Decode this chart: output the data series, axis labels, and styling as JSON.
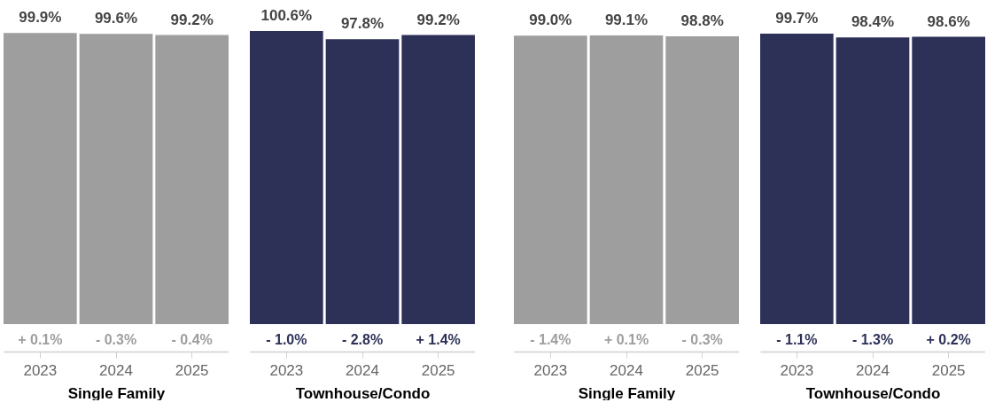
{
  "chart_data": [
    {
      "type": "bar",
      "xlabel": "Single Family",
      "categories": [
        "2023",
        "2024",
        "2025"
      ],
      "values": [
        99.9,
        99.6,
        99.2
      ],
      "value_labels": [
        "99.9%",
        "99.6%",
        "99.2%"
      ],
      "color": "#9e9e9e",
      "annotations": [
        "+ 0.1%",
        "- 0.3%",
        "- 0.4%"
      ]
    },
    {
      "type": "bar",
      "xlabel": "Townhouse/Condo",
      "categories": [
        "2023",
        "2024",
        "2025"
      ],
      "values": [
        100.6,
        97.8,
        99.2
      ],
      "value_labels": [
        "100.6%",
        "97.8%",
        "99.2%"
      ],
      "color": "#2d3157",
      "annotations": [
        "- 1.0%",
        "- 2.8%",
        "+ 1.4%"
      ]
    },
    {
      "type": "bar",
      "xlabel": "Single Family",
      "categories": [
        "2023",
        "2024",
        "2025"
      ],
      "values": [
        99.0,
        99.1,
        98.8
      ],
      "value_labels": [
        "99.0%",
        "99.1%",
        "98.8%"
      ],
      "color": "#9e9e9e",
      "annotations": [
        "- 1.4%",
        "+ 0.1%",
        "- 0.3%"
      ]
    },
    {
      "type": "bar",
      "xlabel": "Townhouse/Condo",
      "categories": [
        "2023",
        "2024",
        "2025"
      ],
      "values": [
        99.7,
        98.4,
        98.6
      ],
      "value_labels": [
        "99.7%",
        "98.4%",
        "98.6%"
      ],
      "color": "#2d3157",
      "annotations": [
        "- 1.1%",
        "- 1.3%",
        "+ 0.2%"
      ]
    }
  ]
}
